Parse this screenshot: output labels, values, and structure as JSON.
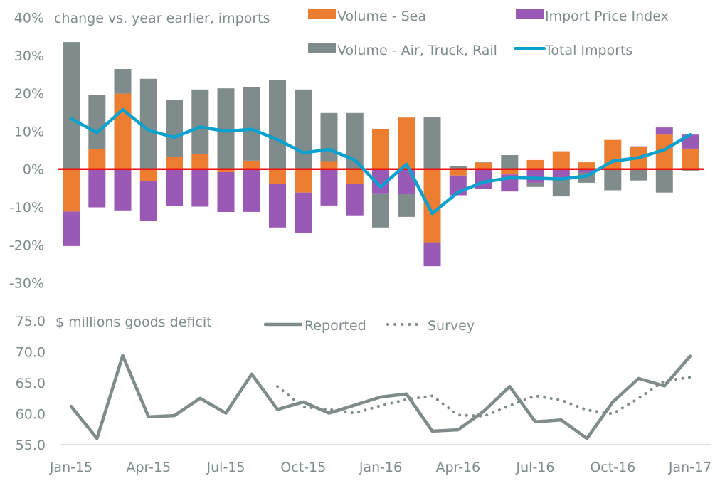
{
  "chart_data": [
    {
      "type": "bar",
      "stacked": true,
      "title": "change vs. year earlier, imports",
      "xlabel": "",
      "ylabel": "",
      "ylim": [
        -0.3,
        0.4
      ],
      "y_ticks": [
        "40%",
        "30%",
        "20%",
        "10%",
        "0%",
        "-10%",
        "-20%",
        "-30%"
      ],
      "y_tick_values": [
        40,
        30,
        20,
        10,
        0,
        -10,
        -20,
        -30
      ],
      "grid": false,
      "zero_line": true,
      "legend_position": "top-right",
      "categories": [
        "Jan-15",
        "Feb-15",
        "Mar-15",
        "Apr-15",
        "May-15",
        "Jun-15",
        "Jul-15",
        "Aug-15",
        "Sep-15",
        "Oct-15",
        "Nov-15",
        "Dec-15",
        "Jan-16",
        "Feb-16",
        "Mar-16",
        "Apr-16",
        "May-16",
        "Jun-16",
        "Jul-16",
        "Aug-16",
        "Sep-16",
        "Oct-16",
        "Nov-16",
        "Dec-16",
        "Jan-17"
      ],
      "series": [
        {
          "name": "Volume - Sea",
          "kind": "bar",
          "color": "#ed7d31",
          "values": [
            -11.2,
            5.2,
            19.9,
            -3.2,
            3.3,
            3.9,
            -0.8,
            2.2,
            -3.8,
            -6.2,
            2.1,
            -3.9,
            10.6,
            13.6,
            -19.3,
            -1.7,
            1.7,
            -1.4,
            2.4,
            4.7,
            1.8,
            7.7,
            5.8,
            9.1,
            5.4
          ]
        },
        {
          "name": "Import Price Index",
          "kind": "bar",
          "color": "#9b59b6",
          "values": [
            -9.1,
            -10.1,
            -10.9,
            -10.5,
            -9.8,
            -9.9,
            -10.5,
            -11.3,
            -11.6,
            -10.7,
            -9.6,
            -8.3,
            -6.4,
            -6.6,
            -6.3,
            -5.2,
            -5.3,
            -4.5,
            -3.6,
            -2.2,
            -0.9,
            0.0,
            0.2,
            1.9,
            3.7
          ]
        },
        {
          "name": "Volume - Air, Truck, Rail",
          "kind": "bar",
          "color": "#7f8c8b",
          "values": [
            33.5,
            14.4,
            6.5,
            23.8,
            15.0,
            17.1,
            21.3,
            19.5,
            23.4,
            21.0,
            12.7,
            14.8,
            -9.0,
            -6.0,
            13.8,
            0.7,
            0.1,
            3.7,
            -1.1,
            -5.0,
            -2.7,
            -5.6,
            -3.0,
            -6.2,
            -0.4
          ]
        },
        {
          "name": "Total Imports",
          "kind": "line",
          "color": "#0aa1cf",
          "values": [
            13.3,
            9.6,
            15.7,
            10.2,
            8.4,
            11.1,
            10.0,
            10.5,
            7.8,
            4.3,
            5.2,
            2.4,
            -4.7,
            1.3,
            -11.7,
            -6.1,
            -3.4,
            -2.3,
            -2.4,
            -2.6,
            -1.8,
            2.1,
            3.0,
            5.1,
            9.1
          ]
        }
      ]
    },
    {
      "type": "line",
      "title": "$ millions goods deficit",
      "xlabel": "",
      "ylabel": "",
      "ylim": [
        55.0,
        75.0
      ],
      "y_ticks": [
        "75.0",
        "70.0",
        "65.0",
        "60.0",
        "55.0"
      ],
      "y_tick_values": [
        75,
        70,
        65,
        60,
        55
      ],
      "x_tick_labels": [
        "Jan-15",
        "Apr-15",
        "Jul-15",
        "Oct-15",
        "Jan-16",
        "Apr-16",
        "Jul-16",
        "Oct-16",
        "Jan-17"
      ],
      "grid": false,
      "legend_position": "top-center",
      "categories": [
        "Jan-15",
        "Feb-15",
        "Mar-15",
        "Apr-15",
        "May-15",
        "Jun-15",
        "Jul-15",
        "Aug-15",
        "Sep-15",
        "Oct-15",
        "Nov-15",
        "Dec-15",
        "Jan-16",
        "Feb-16",
        "Mar-16",
        "Apr-16",
        "May-16",
        "Jun-16",
        "Jul-16",
        "Aug-16",
        "Sep-16",
        "Oct-16",
        "Nov-16",
        "Dec-16",
        "Jan-17"
      ],
      "series": [
        {
          "name": "Reported",
          "style": "solid",
          "color": "#7f8c8b",
          "values": [
            61.2,
            56.0,
            69.4,
            59.5,
            59.7,
            62.5,
            60.1,
            66.4,
            60.7,
            61.9,
            60.1,
            61.4,
            62.7,
            63.2,
            57.2,
            57.4,
            60.4,
            64.4,
            58.7,
            59.0,
            56.0,
            61.9,
            65.7,
            64.5,
            69.3
          ]
        },
        {
          "name": "Survey",
          "style": "dotted",
          "color": "#7f8c8b",
          "values": [
            null,
            null,
            null,
            null,
            null,
            null,
            null,
            null,
            64.4,
            61.1,
            60.7,
            60.1,
            61.3,
            62.3,
            62.9,
            59.8,
            59.6,
            61.3,
            62.9,
            62.2,
            60.6,
            60.0,
            62.5,
            65.3,
            65.9
          ]
        }
      ]
    }
  ]
}
